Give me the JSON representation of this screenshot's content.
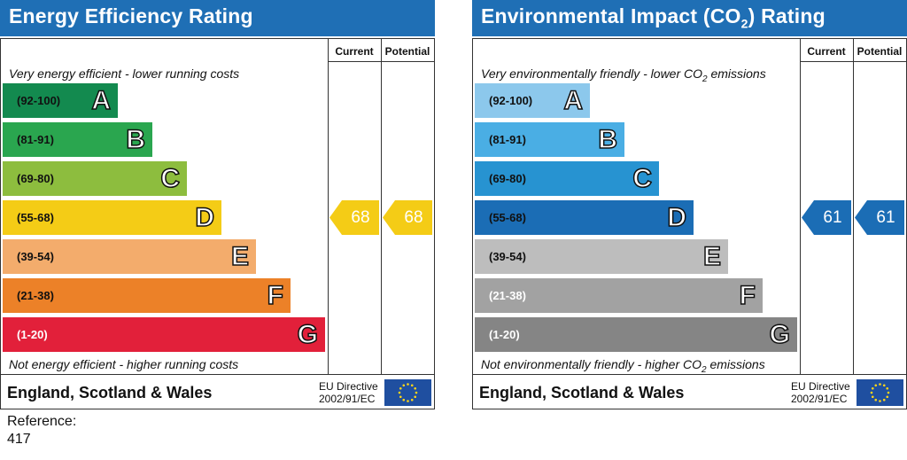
{
  "chart_data": [
    {
      "type": "bar",
      "title": "Energy Efficiency Rating",
      "column_headers": [
        "Current",
        "Potential"
      ],
      "top_description": "Very energy efficient - lower running costs",
      "bottom_description": "Not energy efficient - higher running costs",
      "bands": [
        {
          "range": "(92-100)",
          "letter": "A",
          "color": "#138a4f"
        },
        {
          "range": "(81-91)",
          "letter": "B",
          "color": "#2aa64f"
        },
        {
          "range": "(69-80)",
          "letter": "C",
          "color": "#8dbd3e"
        },
        {
          "range": "(55-68)",
          "letter": "D",
          "color": "#f4cc16"
        },
        {
          "range": "(39-54)",
          "letter": "E",
          "color": "#f3ac6c"
        },
        {
          "range": "(21-38)",
          "letter": "F",
          "color": "#ec8128"
        },
        {
          "range": "(1-20)",
          "letter": "G",
          "color": "#e2203a"
        }
      ],
      "current": {
        "value": "68",
        "band": "D",
        "color": "#f4cc16"
      },
      "potential": {
        "value": "68",
        "band": "D",
        "color": "#f4cc16"
      },
      "country": "England, Scotland & Wales",
      "directive_line1": "EU Directive",
      "directive_line2": "2002/91/EC"
    },
    {
      "type": "bar",
      "title_prefix": "Environmental Impact (CO",
      "title_sub": "2",
      "title_suffix": ") Rating",
      "column_headers": [
        "Current",
        "Potential"
      ],
      "top_prefix": "Very environmentally friendly - lower CO",
      "top_sub": "2",
      "top_suffix": " emissions",
      "bottom_prefix": "Not environmentally friendly - higher CO",
      "bottom_sub": "2",
      "bottom_suffix": " emissions",
      "bands": [
        {
          "range": "(92-100)",
          "letter": "A",
          "color": "#8cc8ec"
        },
        {
          "range": "(81-91)",
          "letter": "B",
          "color": "#4aaee4"
        },
        {
          "range": "(69-80)",
          "letter": "C",
          "color": "#2793d1"
        },
        {
          "range": "(55-68)",
          "letter": "D",
          "color": "#1b6db5"
        },
        {
          "range": "(39-54)",
          "letter": "E",
          "color": "#bdbdbd"
        },
        {
          "range": "(21-38)",
          "letter": "F",
          "color": "#a2a2a2"
        },
        {
          "range": "(1-20)",
          "letter": "G",
          "color": "#858585"
        }
      ],
      "current": {
        "value": "61",
        "band": "D",
        "color": "#1b6db5"
      },
      "potential": {
        "value": "61",
        "band": "D",
        "color": "#1b6db5"
      },
      "country": "England, Scotland & Wales",
      "directive_line1": "EU Directive",
      "directive_line2": "2002/91/EC"
    }
  ],
  "reference": {
    "label": "Reference:",
    "value": "417"
  }
}
